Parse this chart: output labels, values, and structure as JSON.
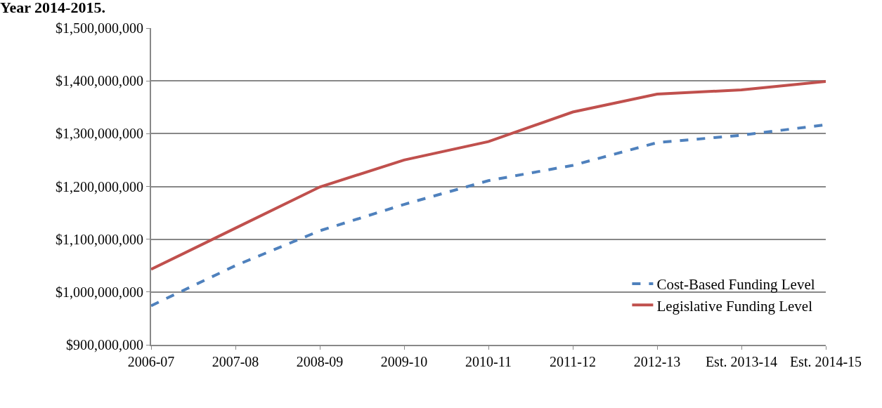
{
  "chart_data": {
    "type": "line",
    "title": "Year 2014-2015.",
    "categories": [
      "2006-07",
      "2007-08",
      "2008-09",
      "2009-10",
      "2010-11",
      "2011-12",
      "2012-13",
      "Est. 2013-14",
      "Est. 2014-15"
    ],
    "series": [
      {
        "name": "Cost-Based Funding Level",
        "color": "#4f81bd",
        "line_style": "dashed",
        "values": [
          974000000,
          1050000000,
          1116000000,
          1166000000,
          1211000000,
          1240000000,
          1283000000,
          1297000000,
          1317000000
        ]
      },
      {
        "name": "Legislative Funding Level",
        "color": "#c0504d",
        "line_style": "solid",
        "values": [
          1043000000,
          1121000000,
          1199000000,
          1250000000,
          1285000000,
          1341000000,
          1375000000,
          1383000000,
          1399000000
        ]
      }
    ],
    "ylim": [
      900000000,
      1500000000
    ],
    "yticks": [
      {
        "value": 900000000,
        "label": "$900,000,000"
      },
      {
        "value": 1000000000,
        "label": "$1,000,000,000"
      },
      {
        "value": 1100000000,
        "label": "$1,100,000,000"
      },
      {
        "value": 1200000000,
        "label": "$1,200,000,000"
      },
      {
        "value": 1300000000,
        "label": "$1,300,000,000"
      },
      {
        "value": 1400000000,
        "label": "$1,400,000,000"
      },
      {
        "value": 1500000000,
        "label": "$1,500,000,000"
      }
    ],
    "grid": "y",
    "legend": "bottom right",
    "marker": "none"
  }
}
